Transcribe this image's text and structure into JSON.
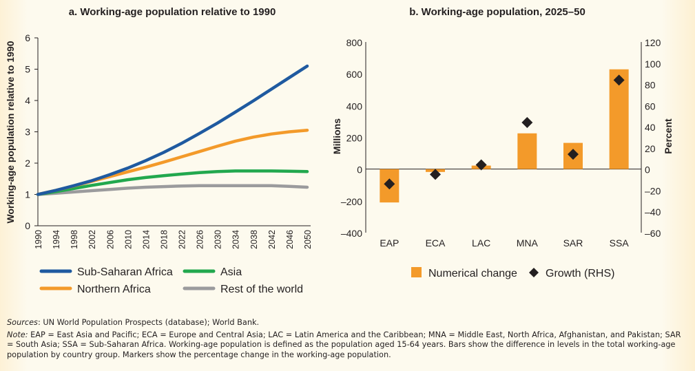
{
  "chart_data": [
    {
      "type": "line",
      "title": "a. Working-age population relative to 1990",
      "xlabel": "",
      "ylabel": "Working-age population relative to 1990",
      "ylim": [
        0,
        6
      ],
      "yticks": [
        "0",
        "1",
        "2",
        "3",
        "4",
        "5",
        "6"
      ],
      "xlim": [
        1990,
        2050
      ],
      "xticks": [
        "1990",
        "1994",
        "1998",
        "2002",
        "2006",
        "2010",
        "2014",
        "2018",
        "2022",
        "2026",
        "2030",
        "2034",
        "2038",
        "2042",
        "2046",
        "2050"
      ],
      "x": [
        1990,
        1994,
        1998,
        2002,
        2006,
        2010,
        2014,
        2018,
        2022,
        2026,
        2030,
        2034,
        2038,
        2042,
        2046,
        2050
      ],
      "series": [
        {
          "name": "Sub-Saharan Africa",
          "color": "#1f5aa0",
          "values": [
            1.0,
            1.13,
            1.28,
            1.44,
            1.63,
            1.84,
            2.08,
            2.34,
            2.63,
            2.95,
            3.28,
            3.63,
            3.99,
            4.36,
            4.73,
            5.1
          ]
        },
        {
          "name": "Northern Africa",
          "color": "#f39a2a",
          "values": [
            1.0,
            1.13,
            1.27,
            1.42,
            1.57,
            1.72,
            1.87,
            2.03,
            2.2,
            2.37,
            2.54,
            2.7,
            2.83,
            2.93,
            3.0,
            3.05
          ]
        },
        {
          "name": "Asia",
          "color": "#22a84e",
          "values": [
            1.0,
            1.09,
            1.19,
            1.29,
            1.38,
            1.47,
            1.54,
            1.6,
            1.65,
            1.7,
            1.73,
            1.75,
            1.75,
            1.75,
            1.74,
            1.73
          ]
        },
        {
          "name": "Rest of the world",
          "color": "#9b9b9d",
          "values": [
            1.0,
            1.04,
            1.08,
            1.12,
            1.16,
            1.2,
            1.23,
            1.25,
            1.27,
            1.28,
            1.28,
            1.28,
            1.28,
            1.28,
            1.26,
            1.23
          ]
        }
      ],
      "legend": {
        "placement": "bottom",
        "columns": 2
      },
      "grid": false
    },
    {
      "type": "bar",
      "title": "b. Working-age population, 2025–50",
      "categories": [
        "EAP",
        "ECA",
        "LAC",
        "MNA",
        "SAR",
        "SSA"
      ],
      "ylabel": "Millions",
      "ylim": [
        -400,
        800
      ],
      "yticks": [
        "-400",
        "-200",
        "0",
        "200",
        "400",
        "600",
        "800"
      ],
      "y2label": "Percent",
      "y2lim": [
        -60,
        120
      ],
      "y2ticks": [
        "-60",
        "-40",
        "-20",
        "0",
        "20",
        "40",
        "60",
        "80",
        "100",
        "120"
      ],
      "series": [
        {
          "name": "Numerical change",
          "type": "bar",
          "axis": "left",
          "color": "#f39a2a",
          "values": [
            -210,
            -18,
            22,
            225,
            165,
            628
          ]
        },
        {
          "name": "Growth (RHS)",
          "type": "marker",
          "marker": "diamond",
          "axis": "right",
          "color": "#231f20",
          "values": [
            -14,
            -5,
            4,
            44,
            14,
            84
          ]
        }
      ],
      "legend": {
        "placement": "bottom"
      },
      "grid": false
    }
  ],
  "footnotes": {
    "sources_label": "Sources",
    "sources_text": ": UN World Population Prospects (database); World Bank.",
    "note_label": "Note:",
    "note_text": " EAP = East Asia and Pacific; ECA = Europe and Central Asia; LAC = Latin America and the Caribbean; MNA = Middle East, North Africa, Afghanistan, and Pakistan; SAR = South Asia; SSA = Sub-Saharan Africa. Working-age population is defined as the population aged 15-64 years. Bars show the difference in levels in the total working-age population by country group. Markers show the percentage change in the working-age population."
  }
}
